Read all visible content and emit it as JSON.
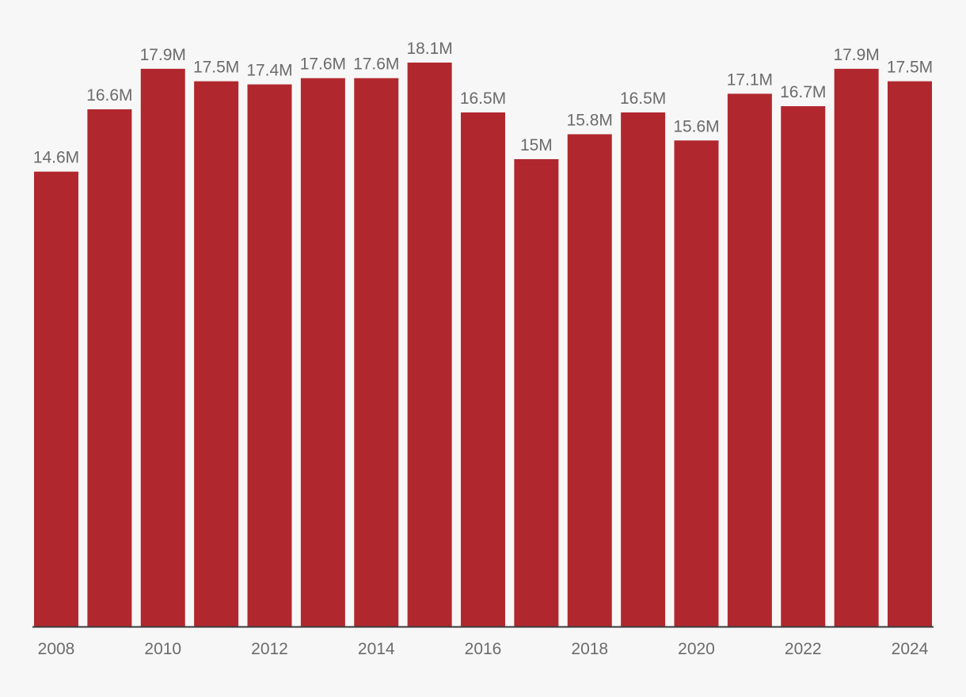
{
  "chart_data": {
    "type": "bar",
    "title": "",
    "xlabel": "",
    "ylabel": "",
    "categories": [
      "2008",
      "2009",
      "2010",
      "2011",
      "2012",
      "2013",
      "2014",
      "2015",
      "2016",
      "2017",
      "2018",
      "2019",
      "2020",
      "2021",
      "2022",
      "2023",
      "2024"
    ],
    "values": [
      14.6,
      16.6,
      17.9,
      17.5,
      17.4,
      17.6,
      17.6,
      18.1,
      16.5,
      15.0,
      15.8,
      16.5,
      15.6,
      17.1,
      16.7,
      17.9,
      17.5
    ],
    "value_labels": [
      "14.6M",
      "16.6M",
      "17.9M",
      "17.5M",
      "17.4M",
      "17.6M",
      "17.6M",
      "18.1M",
      "16.5M",
      "15M",
      "15.8M",
      "16.5M",
      "15.6M",
      "17.1M",
      "16.7M",
      "17.9M",
      "17.5M"
    ],
    "x_tick_labels": [
      "2008",
      "",
      "2010",
      "",
      "2012",
      "",
      "2014",
      "",
      "2016",
      "",
      "2018",
      "",
      "2020",
      "",
      "2022",
      "",
      "2024"
    ],
    "ylim": [
      0,
      18.1
    ],
    "grid": false,
    "legend": "none",
    "bar_color": "#b0282e",
    "axis_color": "#3a3a3a",
    "label_color": "#6b6b6b",
    "background": "#f7f7f7"
  }
}
